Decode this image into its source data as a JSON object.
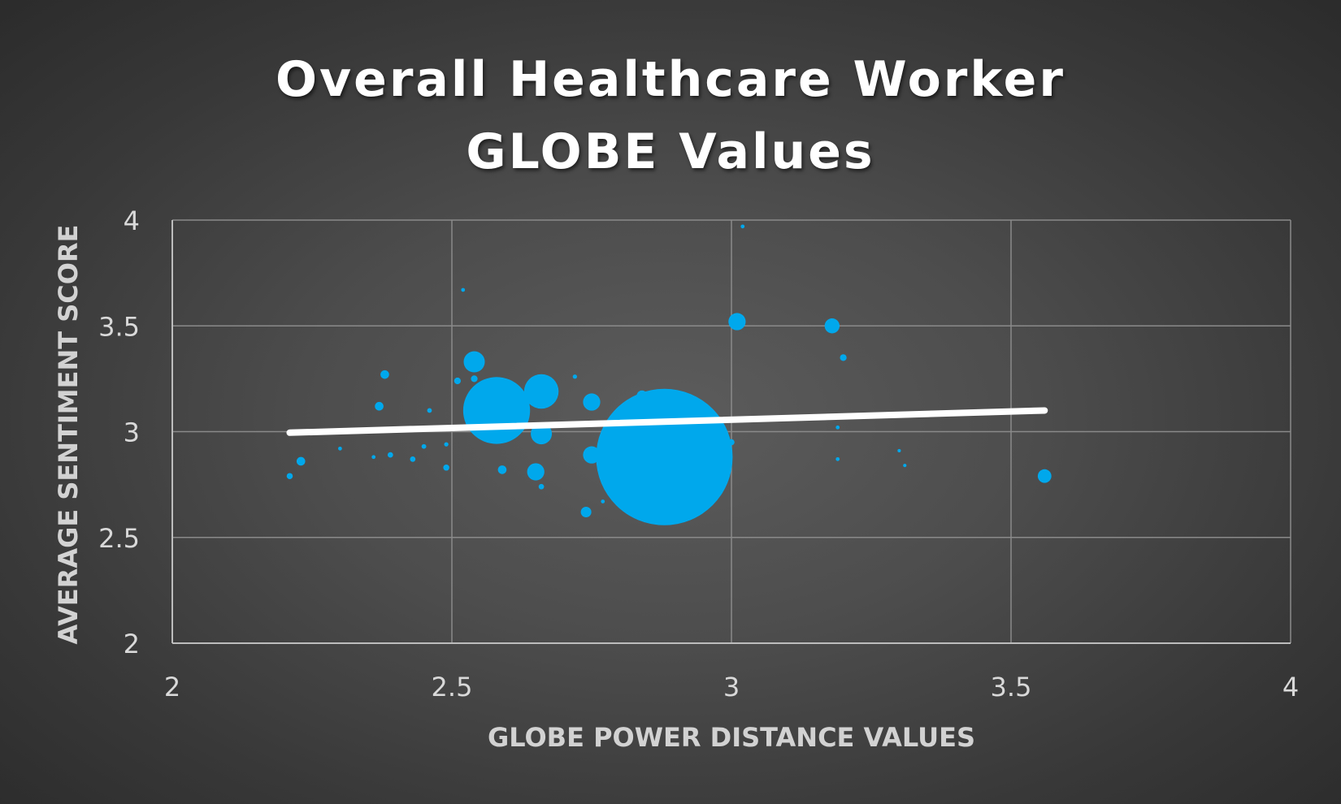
{
  "chart_data": {
    "type": "scatter",
    "variant": "bubble",
    "title_lines": [
      "Overall Healthcare Worker",
      "GLOBE Values"
    ],
    "xlabel": "GLOBE POWER DISTANCE VALUES",
    "ylabel": "AVERAGE SENTIMENT SCORE",
    "xlim": [
      2,
      4
    ],
    "ylim": [
      2,
      4
    ],
    "x_ticks": [
      "2",
      "2.5",
      "3",
      "3.5",
      "4"
    ],
    "y_ticks": [
      "2",
      "2.5",
      "3",
      "3.5",
      "4"
    ],
    "grid": true,
    "legend": "none",
    "colors": {
      "bubble": "#00a8ec",
      "trendline": "#ffffff",
      "gridline": "#8a8a8a",
      "axis": "#bdbdbd"
    },
    "series": [
      {
        "points": [
          {
            "x": 2.21,
            "y": 2.79,
            "size": 1
          },
          {
            "x": 2.23,
            "y": 2.86,
            "size": 2
          },
          {
            "x": 2.3,
            "y": 2.92,
            "size": 0.4
          },
          {
            "x": 2.36,
            "y": 2.88,
            "size": 0.4
          },
          {
            "x": 2.37,
            "y": 3.12,
            "size": 2
          },
          {
            "x": 2.38,
            "y": 3.27,
            "size": 2
          },
          {
            "x": 2.39,
            "y": 2.89,
            "size": 0.8
          },
          {
            "x": 2.43,
            "y": 2.87,
            "size": 0.8
          },
          {
            "x": 2.45,
            "y": 2.93,
            "size": 0.6
          },
          {
            "x": 2.46,
            "y": 3.1,
            "size": 0.6
          },
          {
            "x": 2.49,
            "y": 2.83,
            "size": 1
          },
          {
            "x": 2.49,
            "y": 2.94,
            "size": 0.5
          },
          {
            "x": 2.51,
            "y": 3.24,
            "size": 1.2
          },
          {
            "x": 2.52,
            "y": 3.67,
            "size": 0.4
          },
          {
            "x": 2.54,
            "y": 3.33,
            "size": 12
          },
          {
            "x": 2.54,
            "y": 3.25,
            "size": 1.2
          },
          {
            "x": 2.58,
            "y": 3.1,
            "size": 120
          },
          {
            "x": 2.59,
            "y": 2.82,
            "size": 2
          },
          {
            "x": 2.65,
            "y": 2.81,
            "size": 8
          },
          {
            "x": 2.66,
            "y": 3.19,
            "size": 32
          },
          {
            "x": 2.66,
            "y": 2.99,
            "size": 12
          },
          {
            "x": 2.66,
            "y": 2.74,
            "size": 0.8
          },
          {
            "x": 2.72,
            "y": 3.26,
            "size": 0.5
          },
          {
            "x": 2.74,
            "y": 2.62,
            "size": 3
          },
          {
            "x": 2.75,
            "y": 3.14,
            "size": 8
          },
          {
            "x": 2.75,
            "y": 2.89,
            "size": 8
          },
          {
            "x": 2.77,
            "y": 2.67,
            "size": 0.4
          },
          {
            "x": 2.84,
            "y": 3.17,
            "size": 3
          },
          {
            "x": 2.88,
            "y": 2.88,
            "size": 500
          },
          {
            "x": 3.0,
            "y": 2.95,
            "size": 1
          },
          {
            "x": 3.01,
            "y": 3.52,
            "size": 8
          },
          {
            "x": 3.02,
            "y": 3.97,
            "size": 0.4
          },
          {
            "x": 3.18,
            "y": 3.5,
            "size": 6
          },
          {
            "x": 3.19,
            "y": 3.02,
            "size": 0.4
          },
          {
            "x": 3.19,
            "y": 2.87,
            "size": 0.4
          },
          {
            "x": 3.2,
            "y": 3.35,
            "size": 1.2
          },
          {
            "x": 3.3,
            "y": 2.91,
            "size": 0.3
          },
          {
            "x": 3.31,
            "y": 2.84,
            "size": 0.3
          },
          {
            "x": 3.56,
            "y": 2.79,
            "size": 5
          }
        ]
      }
    ],
    "trendline": {
      "type": "linear",
      "x": [
        2.21,
        3.56
      ],
      "y": [
        2.995,
        3.1
      ]
    }
  }
}
